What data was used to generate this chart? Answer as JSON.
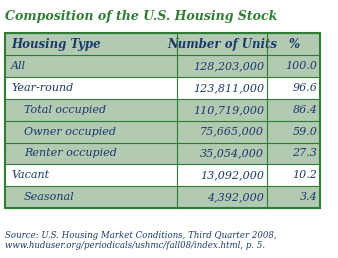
{
  "title": "Composition of the U.S. Housing Stock",
  "title_color": "#2e7d32",
  "header": [
    "Housing Type",
    "Number of Units",
    "%"
  ],
  "rows": [
    [
      "All",
      "128,203,000",
      "100.0"
    ],
    [
      "Year-round",
      "123,811,000",
      "96.6"
    ],
    [
      "Total occupied",
      "110,719,000",
      "86.4"
    ],
    [
      "Owner occupied",
      "75,665,000",
      "59.0"
    ],
    [
      "Renter occupied",
      "35,054,000",
      "27.3"
    ],
    [
      "Vacant",
      "13,092,000",
      "10.2"
    ],
    [
      "Seasonal",
      "4,392,000",
      "3.4"
    ]
  ],
  "indented_rows": [
    2,
    3,
    4,
    6
  ],
  "shaded_rows": [
    0,
    2,
    3,
    4,
    6
  ],
  "shade_color": "#b2c9b2",
  "white_color": "#ffffff",
  "text_color": "#1a3a6b",
  "header_text_color": "#1a3a6b",
  "border_color": "#2e7d32",
  "source_text": "Source: U.S. Housing Market Conditions, Third Quarter 2008,\nwww.huduser.org/periodicals/ushmc/fall08/index.html, p. 5.",
  "source_color": "#1a3a6b",
  "fig_width": 3.38,
  "fig_height": 2.58,
  "dpi": 100
}
